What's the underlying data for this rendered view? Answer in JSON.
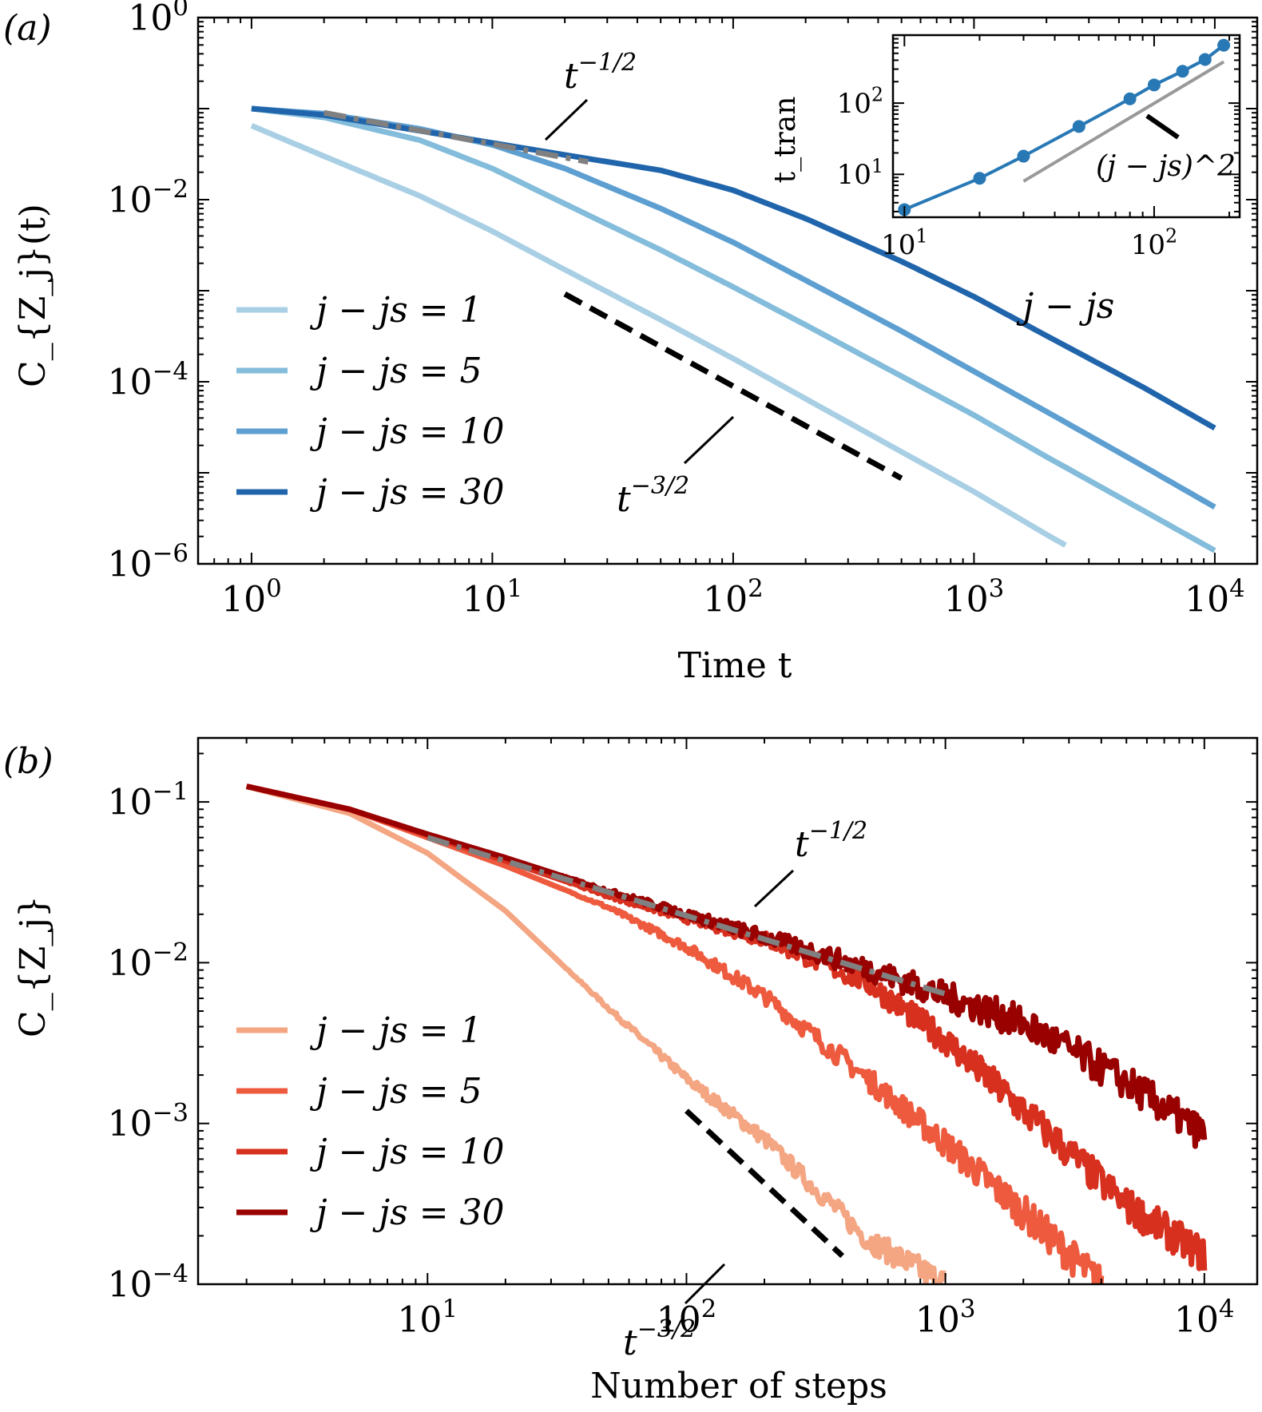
{
  "chart_data": [
    {
      "panel": "(a)",
      "type": "line",
      "xscale": "log",
      "yscale": "log",
      "xlabel": "Time t",
      "ylabel": "C_{Z_j}(t)",
      "xlim": [
        0.6,
        15000
      ],
      "ylim": [
        1e-06,
        1
      ],
      "xticks": [
        {
          "v": 1,
          "exp": "0"
        },
        {
          "v": 10,
          "exp": "1"
        },
        {
          "v": 100,
          "exp": "2"
        },
        {
          "v": 1000,
          "exp": "3"
        },
        {
          "v": 10000,
          "exp": "4"
        }
      ],
      "yticks": [
        {
          "v": 1,
          "exp": "0"
        },
        {
          "v": 0.01,
          "exp": "−2"
        },
        {
          "v": 0.0001,
          "exp": "−4"
        },
        {
          "v": 1e-06,
          "exp": "−6"
        }
      ],
      "legend_position": "lower-left",
      "series": [
        {
          "name": "j − js = 1",
          "color": "#a9cfe5",
          "x": [
            1,
            2,
            5,
            10,
            20,
            50,
            100,
            200,
            500,
            1000,
            2000,
            2400
          ],
          "y": [
            0.065,
            0.03,
            0.011,
            0.0045,
            0.0017,
            0.00048,
            0.00018,
            6.5e-05,
            1.7e-05,
            6.2e-06,
            2.1e-06,
            1.6e-06
          ]
        },
        {
          "name": "j − js = 5",
          "color": "#84bcdb",
          "x": [
            1,
            2,
            5,
            10,
            20,
            50,
            100,
            200,
            500,
            1000,
            2000,
            5000,
            10000
          ],
          "y": [
            0.1,
            0.08,
            0.045,
            0.022,
            0.009,
            0.0028,
            0.0011,
            0.00042,
            0.000115,
            4.3e-05,
            1.5e-05,
            3.9e-06,
            1.4e-06
          ]
        },
        {
          "name": "j − js = 10",
          "color": "#5d9fd1",
          "x": [
            1,
            2,
            5,
            10,
            20,
            50,
            100,
            200,
            500,
            1000,
            2000,
            5000,
            10000
          ],
          "y": [
            0.1,
            0.088,
            0.06,
            0.04,
            0.022,
            0.008,
            0.0034,
            0.0013,
            0.00036,
            0.00013,
            4.7e-05,
            1.2e-05,
            4.2e-06
          ]
        },
        {
          "name": "j − js = 30",
          "color": "#2065ab",
          "x": [
            1,
            2,
            5,
            10,
            20,
            50,
            100,
            200,
            500,
            1000,
            2000,
            5000,
            10000
          ],
          "y": [
            0.1,
            0.085,
            0.057,
            0.042,
            0.031,
            0.021,
            0.0127,
            0.0062,
            0.0021,
            0.00086,
            0.00032,
            8.8e-05,
            3.1e-05
          ]
        }
      ],
      "reference_lines": [
        {
          "label": "t^{-1/2}",
          "style": "dash-dot",
          "color": "#808080",
          "x": [
            2,
            25
          ],
          "y": [
            0.09,
            0.026
          ]
        },
        {
          "label": "t^{-3/2}",
          "style": "dashed",
          "color": "#000000",
          "x": [
            20,
            500
          ],
          "y": [
            0.00092,
            8.7e-06
          ]
        }
      ],
      "annotations": [
        {
          "text": "t^{-1/2}",
          "base": "t",
          "exp": "−1/2"
        },
        {
          "text": "t^{-3/2}",
          "base": "t",
          "exp": "−3/2"
        }
      ],
      "inset": {
        "type": "line+scatter",
        "xscale": "log",
        "yscale": "log",
        "xlabel": "j − js",
        "ylabel": "t_tran",
        "xlim": [
          9,
          220
        ],
        "ylim": [
          2.5,
          900
        ],
        "xticks": [
          {
            "v": 10,
            "exp": "1"
          },
          {
            "v": 100,
            "exp": "2"
          }
        ],
        "yticks": [
          {
            "v": 10,
            "exp": "1"
          },
          {
            "v": 100,
            "exp": "2"
          }
        ],
        "series": [
          {
            "name": "t_tran",
            "color": "#2878b5",
            "x": [
              10,
              20,
              30,
              50,
              80,
              100,
              130,
              160,
              190
            ],
            "y": [
              3.2,
              8.8,
              18,
              47,
              115,
              180,
              280,
              410,
              650
            ]
          }
        ],
        "reference_lines": [
          {
            "label": "(j − js)^2",
            "color": "#999999",
            "x": [
              30,
              190
            ],
            "y": [
              8,
              380
            ]
          }
        ],
        "annotation": "(j − js)^2"
      }
    },
    {
      "panel": "(b)",
      "type": "line",
      "xscale": "log",
      "yscale": "log",
      "xlabel": "Number of steps",
      "ylabel": "C_{Z_j}",
      "xlim": [
        1.3,
        16000
      ],
      "ylim": [
        0.0001,
        0.25
      ],
      "xticks": [
        {
          "v": 10,
          "exp": "1"
        },
        {
          "v": 100,
          "exp": "2"
        },
        {
          "v": 1000,
          "exp": "3"
        },
        {
          "v": 10000,
          "exp": "4"
        }
      ],
      "yticks": [
        {
          "v": 0.1,
          "exp": "−1"
        },
        {
          "v": 0.01,
          "exp": "−2"
        },
        {
          "v": 0.001,
          "exp": "−3"
        },
        {
          "v": 0.0001,
          "exp": "−4"
        }
      ],
      "legend_position": "lower-left",
      "series": [
        {
          "name": "j − js = 1",
          "color": "#f4a582",
          "x": [
            2,
            5,
            10,
            20,
            50,
            100,
            200,
            500,
            1000
          ],
          "y": [
            0.125,
            0.085,
            0.048,
            0.021,
            0.0052,
            0.0019,
            0.0008,
            0.00019,
            0.0001
          ],
          "noisy": true
        },
        {
          "name": "j − js = 5",
          "color": "#ee5a3e",
          "x": [
            2,
            5,
            10,
            20,
            50,
            100,
            200,
            500,
            1000,
            2000,
            4000
          ],
          "y": [
            0.125,
            0.09,
            0.06,
            0.04,
            0.022,
            0.0125,
            0.0062,
            0.0019,
            0.00075,
            0.00028,
            0.0001
          ],
          "noisy": true
        },
        {
          "name": "j − js = 10",
          "color": "#d7301f",
          "x": [
            2,
            5,
            10,
            20,
            50,
            100,
            200,
            500,
            1000,
            2000,
            5000,
            10000
          ],
          "y": [
            0.125,
            0.09,
            0.062,
            0.043,
            0.026,
            0.019,
            0.014,
            0.0075,
            0.0033,
            0.0012,
            0.00031,
            0.00015
          ],
          "noisy": true
        },
        {
          "name": "j − js = 30",
          "color": "#990000",
          "x": [
            2,
            5,
            10,
            20,
            50,
            100,
            200,
            500,
            1000,
            2000,
            5000,
            10000
          ],
          "y": [
            0.125,
            0.09,
            0.063,
            0.045,
            0.028,
            0.02,
            0.0145,
            0.0092,
            0.0062,
            0.0042,
            0.0018,
            0.00085
          ],
          "noisy": true
        }
      ],
      "reference_lines": [
        {
          "label": "t^{-1/2}",
          "style": "dash-dot",
          "color": "#808080",
          "x": [
            10,
            1000
          ],
          "y": [
            0.06,
            0.0064
          ]
        },
        {
          "label": "t^{-3/2}",
          "style": "dashed",
          "color": "#000000",
          "x": [
            100,
            400
          ],
          "y": [
            0.0012,
            0.00015
          ]
        }
      ],
      "annotations": [
        {
          "text": "t^{-1/2}",
          "base": "t",
          "exp": "−1/2"
        },
        {
          "text": "t^{-3/2}",
          "base": "t",
          "exp": "−3/2"
        }
      ]
    }
  ]
}
